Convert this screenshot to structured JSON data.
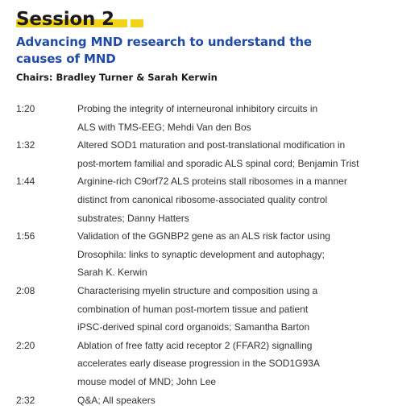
{
  "session": {
    "title": "Session 2",
    "subtitle_line1": "Advancing MND research to understand the",
    "subtitle_line2": "causes of MND",
    "chairs": "Chairs: Bradley Turner & Sarah Kerwin",
    "highlight_color": "#f2d31a",
    "subtitle_color": "#1f4aa8"
  },
  "schedule": [
    {
      "time": "1:20",
      "lines": [
        "Probing the integrity of interneuronal inhibitory circuits in",
        "ALS with TMS-EEG; Mehdi Van den Bos"
      ]
    },
    {
      "time": "1:32",
      "lines": [
        "Altered SOD1 maturation and post-translational modification in",
        "post-mortem familial and sporadic ALS spinal cord; Benjamin Trist"
      ]
    },
    {
      "time": "1:44",
      "lines": [
        "Arginine-rich C9orf72 ALS proteins stall ribosomes in a manner",
        "distinct from canonical ribosome-associated quality control",
        "substrates; Danny Hatters"
      ]
    },
    {
      "time": "1:56",
      "lines": [
        "Validation of the GGNBP2 gene as an ALS risk factor using",
        "Drosophila: links to synaptic development and autophagy;",
        "Sarah K. Kerwin"
      ]
    },
    {
      "time": "2:08",
      "lines": [
        "Characterising myelin structure and composition using a",
        "combination of human post-mortem tissue and patient",
        "iPSC-derived spinal cord organoids; Samantha Barton"
      ]
    },
    {
      "time": "2:20",
      "lines": [
        "Ablation of free fatty acid receptor 2 (FFAR2) signalling",
        "accelerates early disease progression in the SOD1G93A",
        "mouse model of MND; John Lee"
      ]
    },
    {
      "time": "2:32",
      "lines": [
        "Q&A; All speakers"
      ]
    }
  ]
}
